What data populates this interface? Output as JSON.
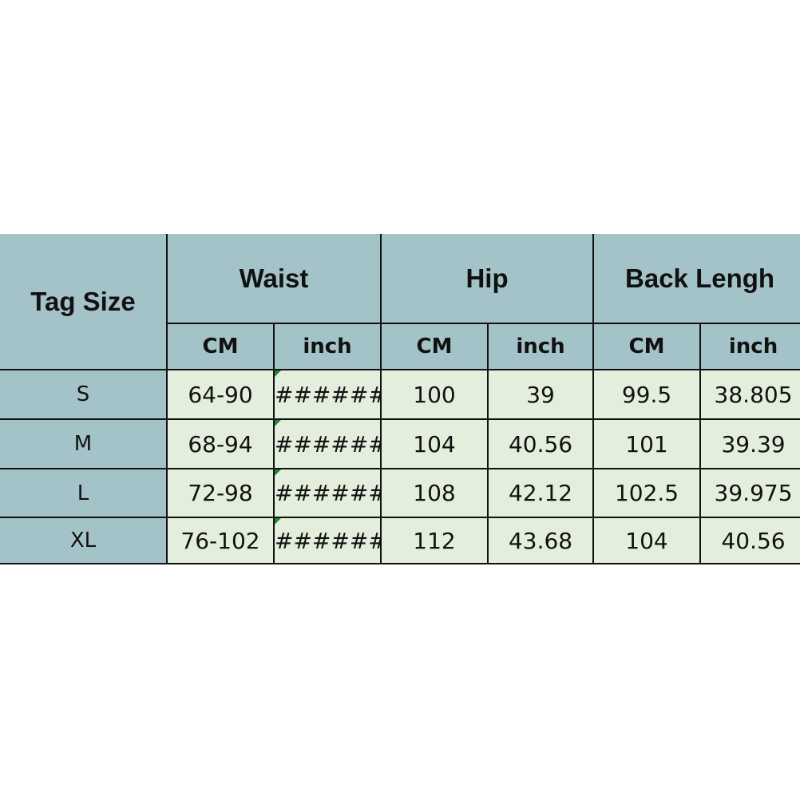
{
  "headers": {
    "tag_size": "Tag Size",
    "waist": "Waist",
    "hip": "Hip",
    "back_length": "Back Lengh",
    "units": [
      "CM",
      "inch",
      "CM",
      "inch",
      "CM",
      "inch"
    ]
  },
  "rows": [
    {
      "size": "S",
      "waist_cm": "64-90",
      "waist_inch": "######",
      "hip_cm": "100",
      "hip_inch": "39",
      "back_cm": "99.5",
      "back_inch": "38.805"
    },
    {
      "size": "M",
      "waist_cm": "68-94",
      "waist_inch": "######",
      "hip_cm": "104",
      "hip_inch": "40.56",
      "back_cm": "101",
      "back_inch": "39.39"
    },
    {
      "size": "L",
      "waist_cm": "72-98",
      "waist_inch": "######",
      "hip_cm": "108",
      "hip_inch": "42.12",
      "back_cm": "102.5",
      "back_inch": "39.975"
    },
    {
      "size": "XL",
      "waist_cm": "76-102",
      "waist_inch": "######",
      "hip_cm": "112",
      "hip_inch": "43.68",
      "back_cm": "104",
      "back_inch": "40.56"
    }
  ],
  "colors": {
    "header": "#a4c3c9",
    "cell": "#e3efdc",
    "error_marker": "#1a8a2a"
  }
}
